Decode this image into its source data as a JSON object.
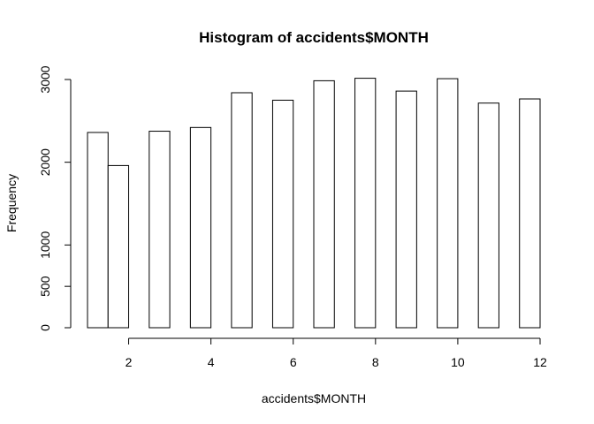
{
  "chart_data": {
    "type": "bar",
    "title": "Histogram of accidents$MONTH",
    "xlabel": "accidents$MONTH",
    "ylabel": "Frequency",
    "xlim": [
      1,
      12
    ],
    "ylim": [
      0,
      3000
    ],
    "x_ticks": [
      2,
      4,
      6,
      8,
      10,
      12
    ],
    "y_ticks": [
      0,
      500,
      1000,
      2000,
      3000
    ],
    "bins": [
      {
        "from": 1.0,
        "to": 1.5,
        "value": 2360
      },
      {
        "from": 1.5,
        "to": 2.0,
        "value": 1960
      },
      {
        "from": 2.0,
        "to": 2.5,
        "value": 0
      },
      {
        "from": 2.5,
        "to": 3.0,
        "value": 2375
      },
      {
        "from": 3.0,
        "to": 3.5,
        "value": 0
      },
      {
        "from": 3.5,
        "to": 4.0,
        "value": 2420
      },
      {
        "from": 4.0,
        "to": 4.5,
        "value": 0
      },
      {
        "from": 4.5,
        "to": 5.0,
        "value": 2840
      },
      {
        "from": 5.0,
        "to": 5.5,
        "value": 0
      },
      {
        "from": 5.5,
        "to": 6.0,
        "value": 2750
      },
      {
        "from": 6.0,
        "to": 6.5,
        "value": 0
      },
      {
        "from": 6.5,
        "to": 7.0,
        "value": 2985
      },
      {
        "from": 7.0,
        "to": 7.5,
        "value": 0
      },
      {
        "from": 7.5,
        "to": 8.0,
        "value": 3015
      },
      {
        "from": 8.0,
        "to": 8.5,
        "value": 0
      },
      {
        "from": 8.5,
        "to": 9.0,
        "value": 2860
      },
      {
        "from": 9.0,
        "to": 9.5,
        "value": 0
      },
      {
        "from": 9.5,
        "to": 10.0,
        "value": 3010
      },
      {
        "from": 10.0,
        "to": 10.5,
        "value": 0
      },
      {
        "from": 10.5,
        "to": 11.0,
        "value": 2715
      },
      {
        "from": 11.0,
        "to": 11.5,
        "value": 0
      },
      {
        "from": 11.5,
        "to": 12.0,
        "value": 2765
      }
    ],
    "colors": {
      "bar_fill": "#ffffff",
      "bar_stroke": "#000000"
    }
  }
}
